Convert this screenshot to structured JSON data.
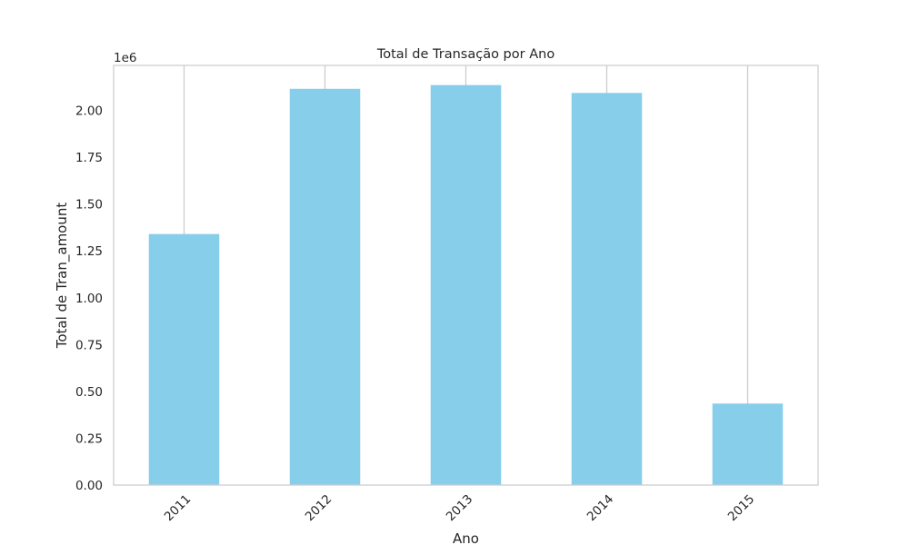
{
  "chart_data": {
    "type": "bar",
    "title": "Total de Transação por Ano",
    "xlabel": "Ano",
    "ylabel": "Total de Tran_amount",
    "y_offset_label": "1e6",
    "categories": [
      "2011",
      "2012",
      "2013",
      "2014",
      "2015"
    ],
    "values": [
      1340000,
      2115000,
      2135000,
      2093000,
      435000
    ],
    "ylim": [
      0,
      2240000
    ],
    "yticks": [
      0,
      250000,
      500000,
      750000,
      1000000,
      1250000,
      1500000,
      1750000,
      2000000
    ],
    "ytick_labels": [
      "0.00",
      "0.25",
      "0.50",
      "0.75",
      "1.00",
      "1.25",
      "1.50",
      "1.75",
      "2.00"
    ],
    "grid": "vertical",
    "bar_color": "#87CEEB",
    "grid_color": "#cccccc",
    "spine_color": "#cccccc"
  }
}
